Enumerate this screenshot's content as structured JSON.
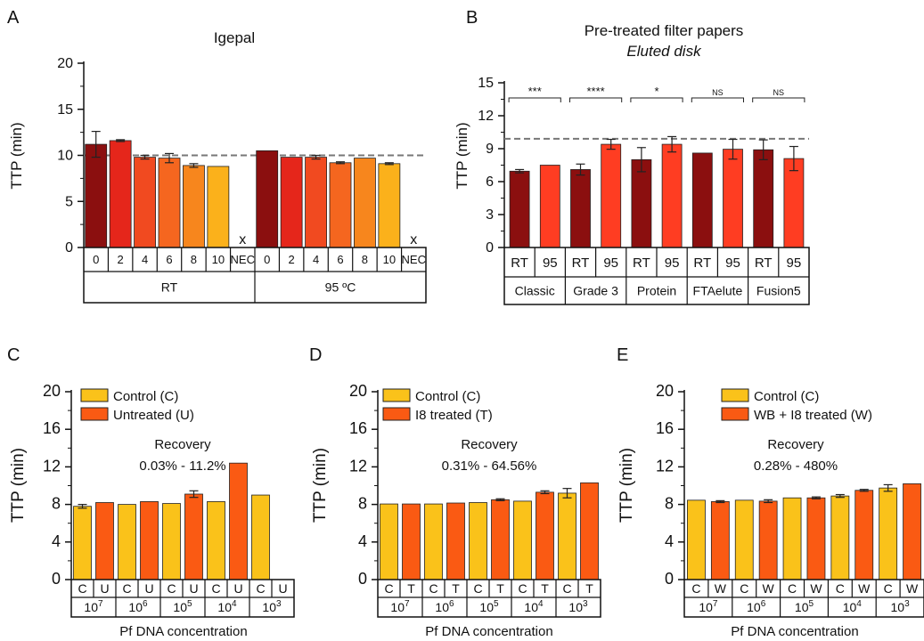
{
  "colors": {
    "dark_red": "#8b0f0f",
    "red": "#e5261b",
    "red_orange": "#f14a20",
    "orange_red": "#f5661f",
    "orange": "#f7861d",
    "light_orange": "#fbb11b",
    "yellow": "#fac319",
    "bright_red": "#ff3d22",
    "control_yellow": "#fac21a",
    "treated_orange": "#fa5a13",
    "dashed": "#777777"
  },
  "chart_data": [
    {
      "panel": "A",
      "type": "bar",
      "title": "Igepal",
      "xlabel": "",
      "ylabel": "TTP (min)",
      "ylim": [
        0,
        20
      ],
      "yticks": [
        "0",
        "5",
        "10",
        "15",
        "20"
      ],
      "reference_line": 10,
      "categories": [
        "0",
        "2",
        "4",
        "6",
        "8",
        "10",
        "NEC",
        "0",
        "2",
        "4",
        "6",
        "8",
        "10",
        "NEC"
      ],
      "groups": [
        "RT",
        "95 ºC"
      ],
      "values": [
        11.2,
        11.6,
        9.8,
        9.7,
        8.9,
        8.8,
        null,
        10.5,
        9.8,
        9.8,
        9.2,
        9.7,
        9.1,
        null
      ],
      "errors": [
        1.4,
        0.1,
        0.2,
        0.5,
        0.2,
        0,
        null,
        0,
        0,
        0.2,
        0.1,
        0,
        0.1,
        null
      ],
      "markers": [
        "",
        "",
        "",
        "",
        "",
        "",
        "x",
        "",
        "",
        "",
        "",
        "",
        "",
        "x"
      ]
    },
    {
      "panel": "B",
      "type": "bar",
      "title": "Pre-treated filter papers",
      "subtitle": "Eluted disk",
      "xlabel": "",
      "ylabel": "TTP (min)",
      "ylim": [
        0,
        15
      ],
      "yticks": [
        "0",
        "3",
        "6",
        "9",
        "12",
        "15"
      ],
      "reference_line": 9.9,
      "categories": [
        "RT",
        "95",
        "RT",
        "95",
        "RT",
        "95",
        "RT",
        "95",
        "RT",
        "95"
      ],
      "groups": [
        "Classic",
        "Grade 3",
        "Protein",
        "FTAelute",
        "Fusion5"
      ],
      "values": [
        6.95,
        7.5,
        7.1,
        9.4,
        8.0,
        9.4,
        8.6,
        8.95,
        8.9,
        8.1
      ],
      "errors": [
        0.15,
        0,
        0.5,
        0.45,
        1.1,
        0.7,
        0,
        0.9,
        0.9,
        1.1
      ],
      "significance": [
        "***",
        "****",
        "*",
        "NS",
        "NS"
      ]
    },
    {
      "panel": "C",
      "type": "bar",
      "title": "",
      "xlabel": "Pf DNA concentration",
      "ylabel": "TTP (min)",
      "ylim": [
        0,
        20
      ],
      "yticks": [
        "0",
        "4",
        "8",
        "12",
        "16",
        "20"
      ],
      "legend": [
        "Control (C)",
        "Untreated (U)"
      ],
      "annotation": [
        "Recovery",
        "0.03% - 11.2%"
      ],
      "categories": [
        "C",
        "U",
        "C",
        "U",
        "C",
        "U",
        "C",
        "U",
        "C",
        "U"
      ],
      "groups": [
        "10",
        "10",
        "10",
        "10",
        "10"
      ],
      "group_exponents": [
        "7",
        "6",
        "5",
        "4",
        "3"
      ],
      "values": [
        7.8,
        8.2,
        8.0,
        8.3,
        8.1,
        9.1,
        8.3,
        12.4,
        9.0,
        null
      ],
      "errors": [
        0.2,
        0,
        0,
        0,
        0,
        0.35,
        0,
        0,
        0,
        null
      ]
    },
    {
      "panel": "D",
      "type": "bar",
      "title": "",
      "xlabel": "Pf DNA concentration",
      "ylabel": "TTP (min)",
      "ylim": [
        0,
        20
      ],
      "yticks": [
        "0",
        "4",
        "8",
        "12",
        "16",
        "20"
      ],
      "legend": [
        "Control (C)",
        "I8 treated (T)"
      ],
      "annotation": [
        "Recovery",
        "0.31% - 64.56%"
      ],
      "categories": [
        "C",
        "T",
        "C",
        "T",
        "C",
        "T",
        "C",
        "T",
        "C",
        "T"
      ],
      "groups": [
        "10",
        "10",
        "10",
        "10",
        "10"
      ],
      "group_exponents": [
        "7",
        "6",
        "5",
        "4",
        "3"
      ],
      "values": [
        8.05,
        8.05,
        8.05,
        8.15,
        8.2,
        8.5,
        8.35,
        9.3,
        9.2,
        10.3
      ],
      "errors": [
        0,
        0,
        0,
        0,
        0,
        0.1,
        0,
        0.15,
        0.5,
        0
      ]
    },
    {
      "panel": "E",
      "type": "bar",
      "title": "",
      "xlabel": "Pf DNA concentration",
      "ylabel": "TTP (min)",
      "ylim": [
        0,
        20
      ],
      "yticks": [
        "0",
        "4",
        "8",
        "12",
        "16",
        "20"
      ],
      "legend": [
        "Control (C)",
        "WB + I8 treated (W)"
      ],
      "annotation": [
        "Recovery",
        "0.28% - 480%"
      ],
      "categories": [
        "C",
        "W",
        "C",
        "W",
        "C",
        "W",
        "C",
        "W",
        "C",
        "W"
      ],
      "groups": [
        "10",
        "10",
        "10",
        "10",
        "10"
      ],
      "group_exponents": [
        "7",
        "6",
        "5",
        "4",
        "3"
      ],
      "values": [
        8.45,
        8.3,
        8.45,
        8.35,
        8.7,
        8.7,
        8.9,
        9.5,
        9.75,
        10.2
      ],
      "errors": [
        0,
        0.1,
        0,
        0.15,
        0,
        0.1,
        0.15,
        0.1,
        0.35,
        0
      ]
    }
  ]
}
